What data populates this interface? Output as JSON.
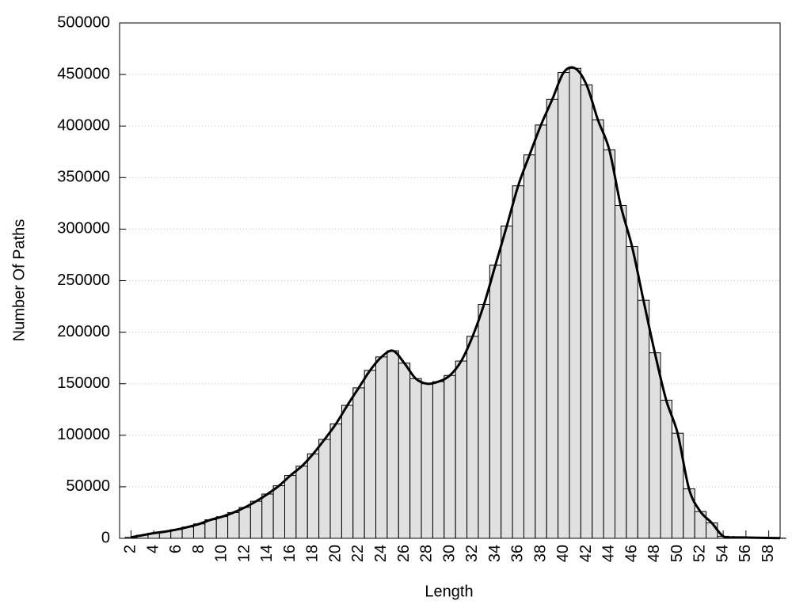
{
  "chart_data": {
    "type": "bar",
    "x_label": "Length",
    "y_label": "Number Of Paths",
    "x": [
      2,
      3,
      4,
      5,
      6,
      7,
      8,
      9,
      10,
      11,
      12,
      13,
      14,
      15,
      16,
      17,
      18,
      19,
      20,
      21,
      22,
      23,
      24,
      25,
      26,
      27,
      28,
      29,
      30,
      31,
      32,
      33,
      34,
      35,
      36,
      37,
      38,
      39,
      40,
      41,
      42,
      43,
      44,
      45,
      46,
      47,
      48,
      49,
      50,
      51,
      52,
      53,
      54,
      55,
      56,
      57,
      58,
      59
    ],
    "values": [
      1000,
      3000,
      5000,
      6500,
      8500,
      11000,
      14000,
      18000,
      21000,
      25000,
      30000,
      36000,
      43000,
      51000,
      61000,
      70000,
      82000,
      96000,
      111000,
      129000,
      146000,
      163000,
      176000,
      182000,
      170000,
      155000,
      150000,
      152000,
      158000,
      172000,
      196000,
      227000,
      265000,
      303000,
      342000,
      372000,
      401000,
      426000,
      452000,
      456000,
      440000,
      406000,
      377000,
      323000,
      283000,
      231000,
      180000,
      134000,
      102000,
      48000,
      26000,
      15000,
      2000,
      1000,
      800,
      600,
      400,
      200
    ],
    "color": "#e0e0e0",
    "line_color": "#000000",
    "smooth_line": true,
    "xlim": [
      1,
      59
    ],
    "xticks": [
      2,
      4,
      6,
      8,
      10,
      12,
      14,
      16,
      18,
      20,
      22,
      24,
      26,
      28,
      30,
      32,
      34,
      36,
      38,
      40,
      42,
      44,
      46,
      48,
      50,
      52,
      54,
      56,
      58
    ],
    "ylim": [
      0,
      500000
    ],
    "yticks": [
      0,
      50000,
      100000,
      150000,
      200000,
      250000,
      300000,
      350000,
      400000,
      450000,
      500000
    ],
    "grid": true
  }
}
